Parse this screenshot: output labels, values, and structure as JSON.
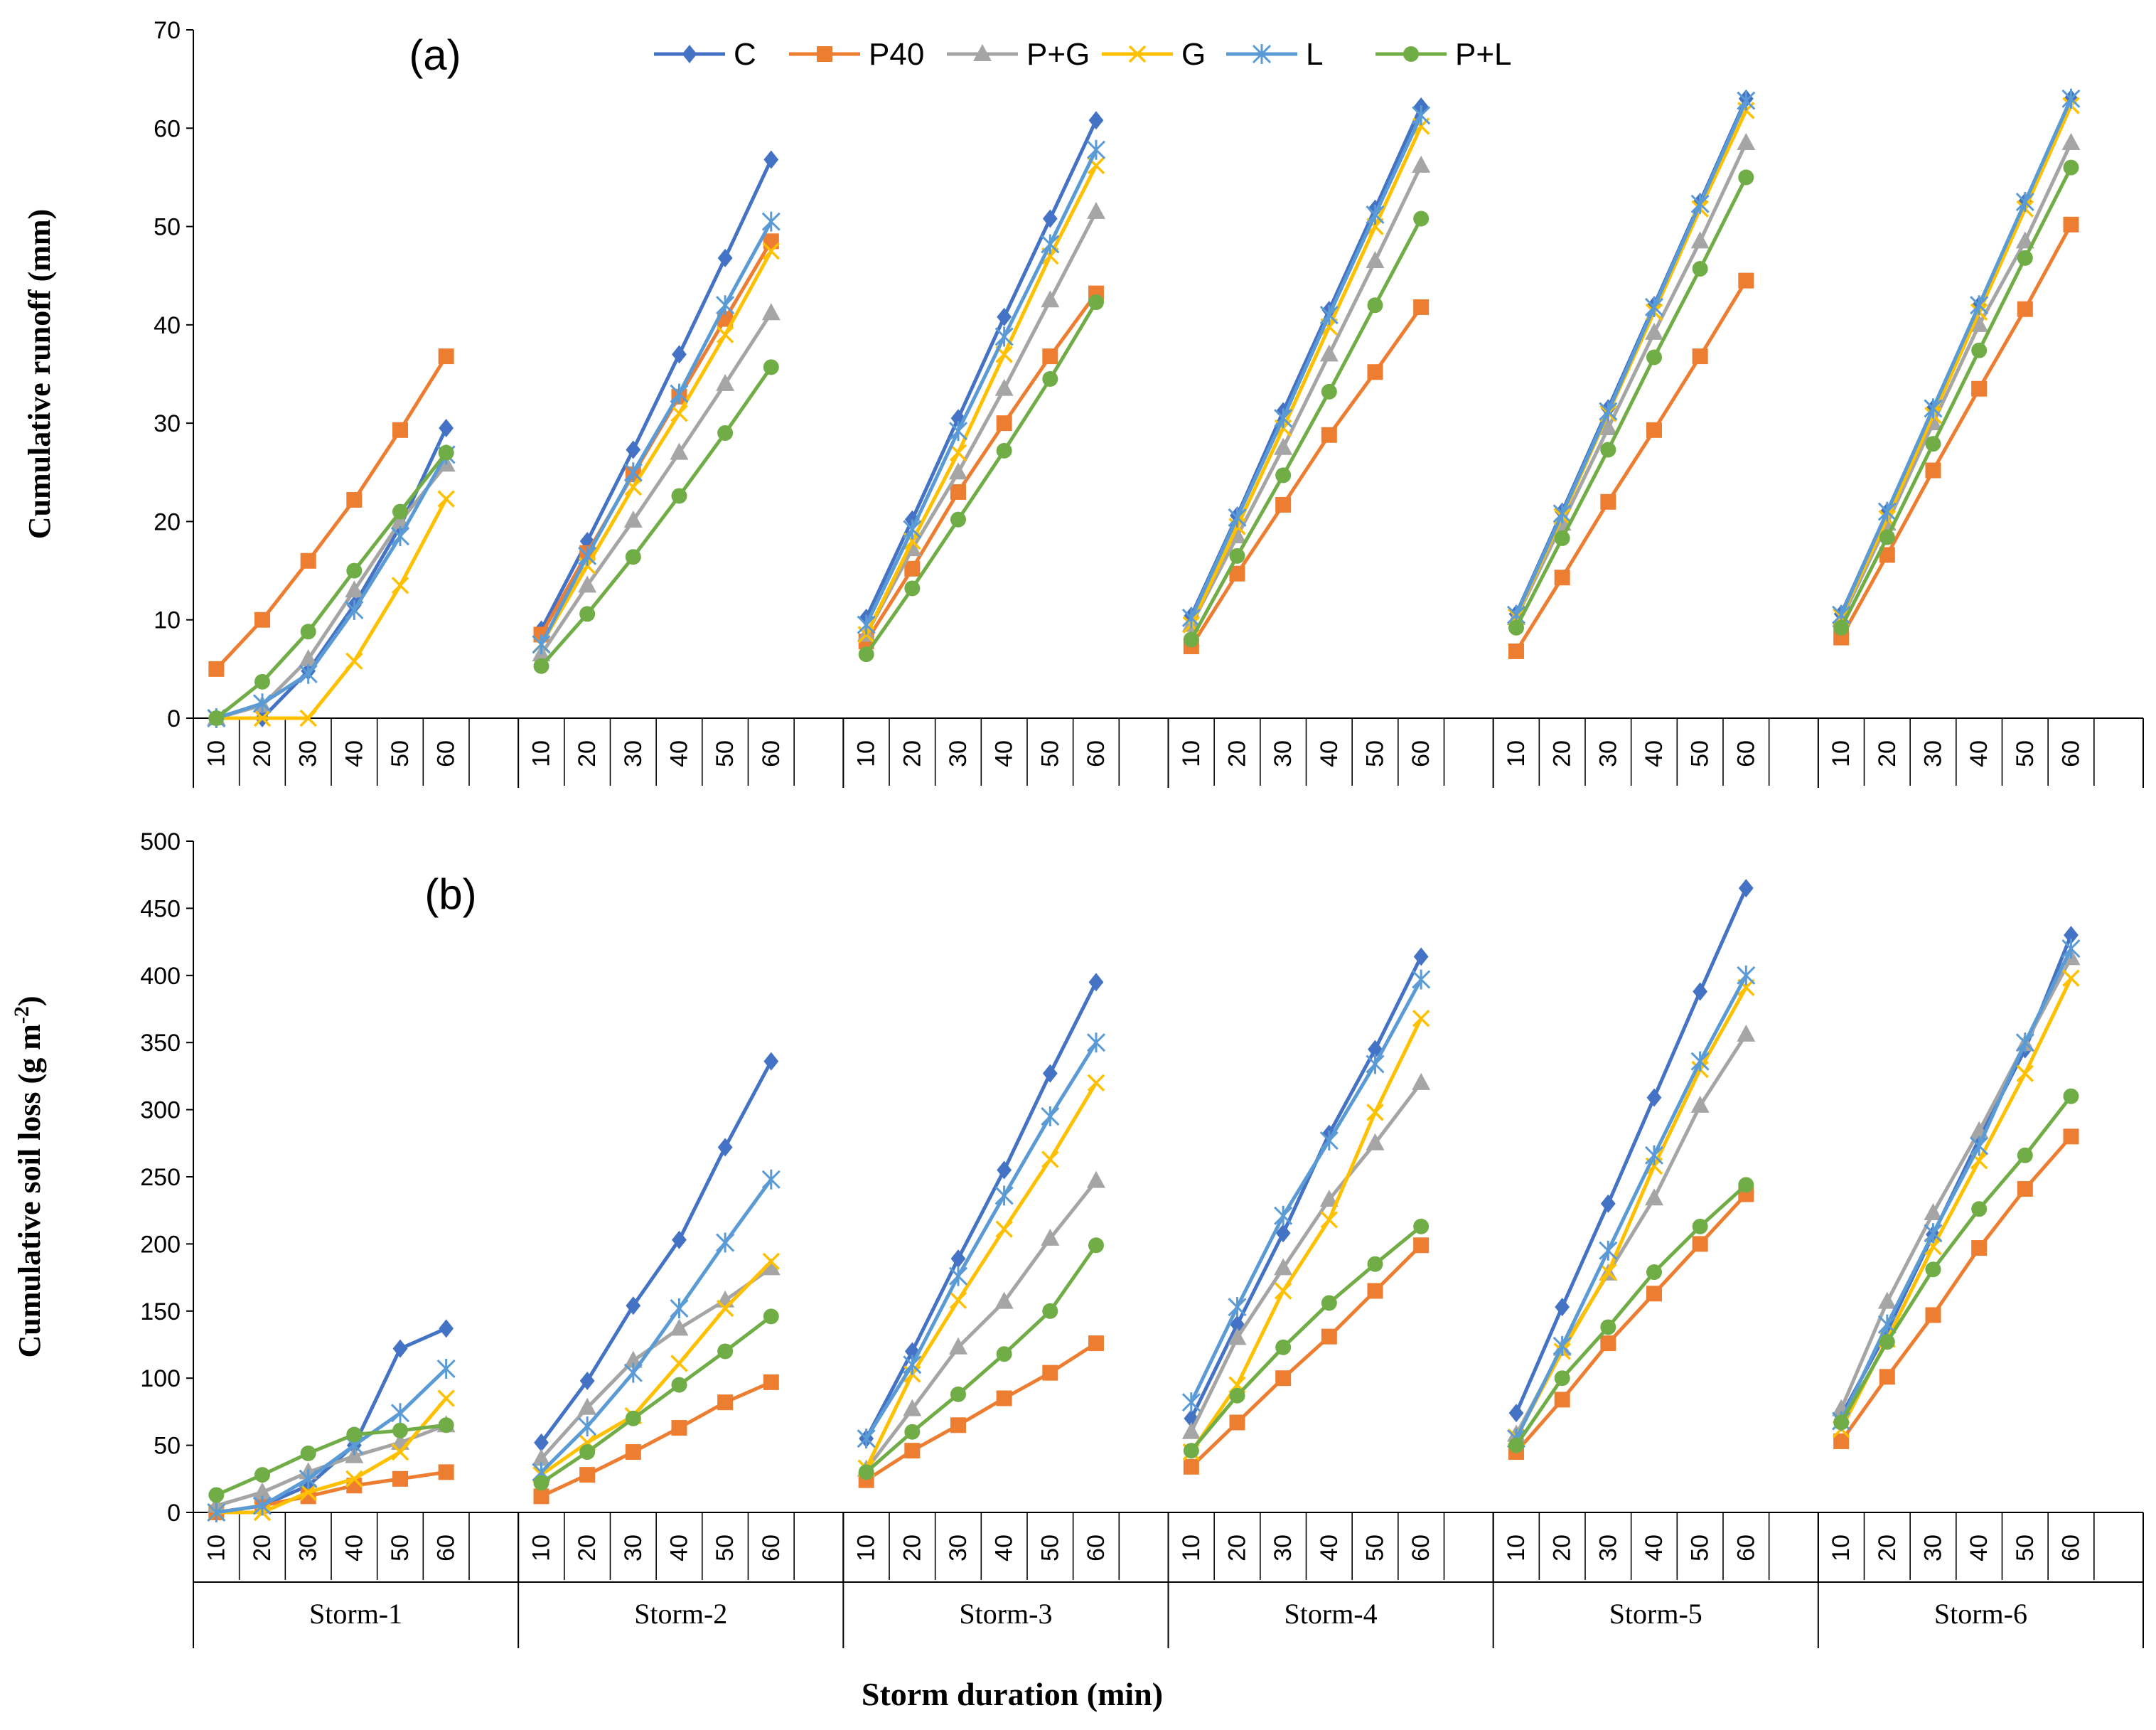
{
  "chart_data": [
    {
      "type": "line",
      "panel_label": "(a)",
      "ylabel_main": "Cumulative  runoff  (mm)",
      "ylim": [
        0,
        70
      ],
      "yticks": [
        "0",
        "10",
        "20",
        "30",
        "40",
        "50",
        "60",
        "70"
      ],
      "durations": [
        "10",
        "20",
        "30",
        "40",
        "50",
        "60"
      ],
      "groups": [
        "Storm-1",
        "Storm-2",
        "Storm-3",
        "Storm-4",
        "Storm-5",
        "Storm-6"
      ],
      "series": [
        {
          "name": "C",
          "color": "#4472C4",
          "marker": "diamond",
          "values": [
            [
              0,
              0,
              4.8,
              11.5,
              19.5,
              29.5
            ],
            [
              9,
              18,
              27.3,
              37,
              46.8,
              56.8
            ],
            [
              10.2,
              20.2,
              30.5,
              40.8,
              50.8,
              60.8
            ],
            [
              10.4,
              20.6,
              31.2,
              41.5,
              51.8,
              62.2
            ],
            [
              10.6,
              21,
              31.5,
              42,
              52.5,
              63
            ],
            [
              10.6,
              21,
              31.5,
              42,
              52.5,
              63
            ]
          ]
        },
        {
          "name": "P40",
          "color": "#ED7D31",
          "marker": "square",
          "values": [
            [
              5,
              10,
              16,
              22.2,
              29.3,
              36.8
            ],
            [
              8.5,
              16.8,
              24.8,
              32.7,
              40.6,
              48.5
            ],
            [
              7.8,
              15.2,
              23,
              30,
              36.8,
              43.2
            ],
            [
              7.3,
              14.7,
              21.7,
              28.8,
              35.2,
              41.8
            ],
            [
              6.8,
              14.3,
              22,
              29.3,
              36.8,
              44.5
            ],
            [
              8.2,
              16.6,
              25.2,
              33.5,
              41.6,
              50.2
            ]
          ]
        },
        {
          "name": "P+G",
          "color": "#A5A5A5",
          "marker": "triangle",
          "values": [
            [
              0,
              1.3,
              6,
              13,
              20,
              25.8
            ],
            [
              6.5,
              13.5,
              20.1,
              27,
              34,
              41.2
            ],
            [
              8.5,
              17.2,
              25,
              33.5,
              42.5,
              51.5
            ],
            [
              9.5,
              18.5,
              27.5,
              37,
              46.5,
              56.2
            ],
            [
              10.2,
              19.8,
              29.5,
              39.2,
              48.5,
              58.5
            ],
            [
              10,
              19.8,
              30,
              40,
              48.5,
              58.5
            ]
          ]
        },
        {
          "name": "G",
          "color": "#FFC000",
          "marker": "x",
          "values": [
            [
              0,
              0,
              0,
              5.8,
              13.5,
              22.3
            ],
            [
              7.5,
              15.5,
              23.5,
              31,
              39,
              47.5
            ],
            [
              8.5,
              18,
              27,
              37,
              47,
              56.2
            ],
            [
              9.5,
              19.5,
              29.5,
              39.8,
              50,
              60.2
            ],
            [
              10.3,
              20.5,
              31,
              41.3,
              51.8,
              61.8
            ],
            [
              10.3,
              20.3,
              30.8,
              41.3,
              51.8,
              62.3
            ]
          ]
        },
        {
          "name": "L",
          "color": "#5B9BD5",
          "marker": "star",
          "values": [
            [
              0,
              1.5,
              4.5,
              11,
              18.5,
              26.8
            ],
            [
              7.5,
              16.5,
              25,
              33,
              42,
              50.5
            ],
            [
              9.5,
              19.2,
              29.2,
              38.8,
              48.2,
              57.8
            ],
            [
              10.2,
              20.4,
              30.5,
              41,
              51.2,
              61.3
            ],
            [
              10.5,
              20.8,
              31.2,
              41.8,
              52.3,
              62.8
            ],
            [
              10.5,
              21,
              31.5,
              42,
              52.5,
              63
            ]
          ]
        },
        {
          "name": "P+L",
          "color": "#70AD47",
          "marker": "circle",
          "values": [
            [
              0,
              3.7,
              8.8,
              15,
              21,
              27
            ],
            [
              5.3,
              10.6,
              16.4,
              22.6,
              29,
              35.7
            ],
            [
              6.5,
              13.2,
              20.2,
              27.2,
              34.5,
              42.3
            ],
            [
              8,
              16.5,
              24.7,
              33.2,
              42,
              50.8
            ],
            [
              9.2,
              18.3,
              27.3,
              36.7,
              45.7,
              55
            ],
            [
              9.2,
              18.4,
              27.9,
              37.4,
              46.8,
              56
            ]
          ]
        }
      ]
    },
    {
      "type": "line",
      "panel_label": "(b)",
      "ylabel_main": "Cumulative  soil loss (g  m",
      "ylabel_sup": "-2",
      "ylabel_end": ")",
      "ylim": [
        0,
        500
      ],
      "yticks": [
        "0",
        "50",
        "100",
        "150",
        "200",
        "250",
        "300",
        "350",
        "400",
        "450",
        "500"
      ],
      "durations": [
        "10",
        "20",
        "30",
        "40",
        "50",
        "60"
      ],
      "groups": [
        "Storm-1",
        "Storm-2",
        "Storm-3",
        "Storm-4",
        "Storm-5",
        "Storm-6"
      ],
      "series": [
        {
          "name": "C",
          "color": "#4472C4",
          "marker": "diamond",
          "values": [
            [
              0,
              5,
              20,
              50,
              122,
              137
            ],
            [
              52,
              98,
              154,
              203,
              272,
              336
            ],
            [
              55,
              120,
              189,
              255,
              327,
              395
            ],
            [
              70,
              140,
              208,
              282,
              345,
              414
            ],
            [
              74,
              153,
              230,
              309,
              388,
              465
            ],
            [
              72,
              135,
              207,
              278,
              345,
              430
            ]
          ]
        },
        {
          "name": "P40",
          "color": "#ED7D31",
          "marker": "square",
          "values": [
            [
              0,
              5,
              12,
              20,
              25,
              30
            ],
            [
              12,
              28,
              45,
              63,
              82,
              97
            ],
            [
              24,
              46,
              65,
              85,
              104,
              126
            ],
            [
              34,
              67,
              100,
              131,
              165,
              199
            ],
            [
              45,
              84,
              126,
              163,
              200,
              237
            ],
            [
              53,
              101,
              147,
              197,
              241,
              280
            ]
          ]
        },
        {
          "name": "P+G",
          "color": "#A5A5A5",
          "marker": "triangle",
          "values": [
            [
              5,
              15,
              30,
              42,
              52,
              65
            ],
            [
              40,
              78,
              113,
              137,
              158,
              182
            ],
            [
              32,
              77,
              123,
              157,
              204,
              247
            ],
            [
              60,
              130,
              182,
              233,
              275,
              320
            ],
            [
              58,
              122,
              178,
              234,
              303,
              356
            ],
            [
              77,
              157,
              223,
              284,
              349,
              413
            ]
          ]
        },
        {
          "name": "G",
          "color": "#FFC000",
          "marker": "x",
          "values": [
            [
              0,
              0,
              15,
              25,
              45,
              85
            ],
            [
              28,
              52,
              72,
              111,
              152,
              187
            ],
            [
              33,
              103,
              158,
              211,
              263,
              320
            ],
            [
              45,
              95,
              165,
              218,
              298,
              368
            ],
            [
              56,
              120,
              179,
              258,
              330,
              391
            ],
            [
              62,
              129,
              198,
              262,
              327,
              398
            ]
          ]
        },
        {
          "name": "L",
          "color": "#5B9BD5",
          "marker": "star",
          "values": [
            [
              0,
              5,
              25,
              50,
              74,
              107
            ],
            [
              30,
              64,
              104,
              152,
              201,
              248
            ],
            [
              55,
              110,
              176,
              236,
              295,
              350
            ],
            [
              82,
              153,
              221,
              277,
              334,
              397
            ],
            [
              55,
              124,
              195,
              266,
              336,
              400
            ],
            [
              68,
              140,
              208,
              273,
              350,
              420
            ]
          ]
        },
        {
          "name": "P+L",
          "color": "#70AD47",
          "marker": "circle",
          "values": [
            [
              13,
              28,
              44,
              58,
              61,
              65
            ],
            [
              22,
              45,
              70,
              95,
              120,
              146
            ],
            [
              30,
              60,
              88,
              118,
              150,
              199
            ],
            [
              46,
              87,
              123,
              156,
              185,
              213
            ],
            [
              50,
              100,
              138,
              179,
              213,
              244
            ],
            [
              67,
              127,
              181,
              226,
              266,
              310
            ]
          ]
        }
      ]
    }
  ],
  "xlabel": "Storm duration  (min)"
}
